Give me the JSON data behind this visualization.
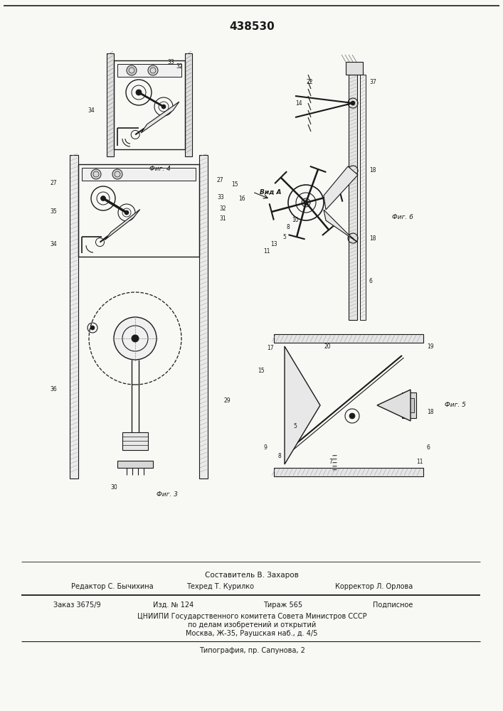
{
  "patent_number": "438530",
  "bg_color": "#f8f8f5",
  "line_color": "#1a1a1a",
  "footer": {
    "composer": "Составитель В. Захаров",
    "editor": "Редактор С. Бычихина",
    "techred": "Техред Т. Курилко",
    "corrector": "Корректор Л. Орлова",
    "order": "Заказ 3675/9",
    "izdanie": "Изд. № 124",
    "tirazh": "Тираж 565",
    "podpisnoe": "Подписное",
    "org1": "ЦНИИПИ Государственного комитета Совета Министров СССР",
    "org2": "по делам изобретений и открытий",
    "org3": "Москва, Ж-35, Раушская наб., д. 4/5",
    "typografia": "Типография, пр. Сапунова, 2"
  }
}
